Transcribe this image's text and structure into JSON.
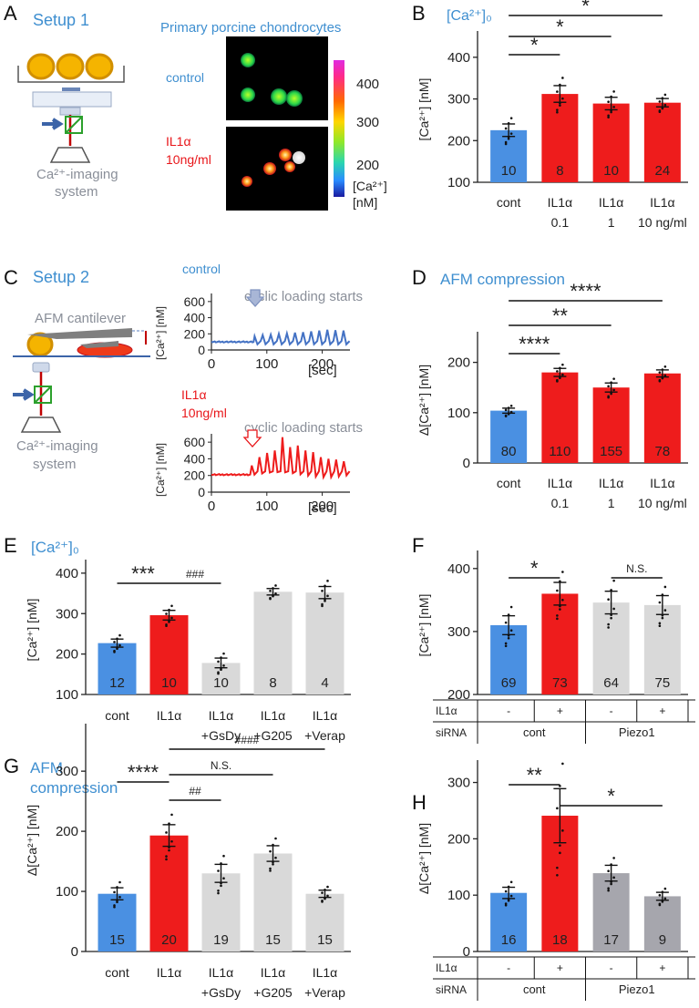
{
  "panels": {
    "A": {
      "letter": "A",
      "setup_title": "Setup 1",
      "micro_title": "Primary porcine chondrocytes",
      "control_label": "control",
      "il1a_label_1": "IL1α",
      "il1a_label_2": "10ng/ml",
      "system_label_1": "Ca²⁺-imaging",
      "system_label_2": "system",
      "colorbar_ticks": [
        "400",
        "300",
        "200"
      ],
      "colorbar_unit_1": "[Ca²⁺]",
      "colorbar_unit_2": "[nM]"
    },
    "C": {
      "letter": "C",
      "setup_title": "Setup 2",
      "cantilever_label": "AFM cantilever",
      "system_label_1": "Ca²⁺-imaging",
      "system_label_2": "system",
      "control_label": "control",
      "il1a_label_1": "IL1α",
      "il1a_label_2": "10ng/ml",
      "cyclic_label": "cyclic loading starts",
      "trace_ylabel": "[Ca²⁺] [nM]",
      "trace_xunit": "[sec]",
      "top_ylabel": "[Ca²⁺] [nM]",
      "bottom_xunit": "[sec]"
    }
  },
  "chart_data": [
    {
      "id": "B",
      "type": "bar",
      "letter": "B",
      "title": "[Ca²⁺]₀",
      "ylabel": "[Ca²⁺] [nM]",
      "ylim": [
        100,
        450
      ],
      "yticks": [
        100,
        200,
        300,
        400
      ],
      "categories": [
        [
          "cont"
        ],
        [
          "IL1α",
          "0.1"
        ],
        [
          "IL1α",
          "1"
        ],
        [
          "IL1α",
          "10 ng/ml"
        ]
      ],
      "values": [
        225,
        312,
        289,
        291
      ],
      "errors": [
        15,
        20,
        15,
        10
      ],
      "n": [
        "10",
        "8",
        "10",
        "24"
      ],
      "colors": [
        "#4a90e2",
        "#ee1c1c",
        "#ee1c1c",
        "#ee1c1c"
      ],
      "significance": [
        {
          "from": 0,
          "to": 1,
          "label": "*",
          "level": 1
        },
        {
          "from": 0,
          "to": 2,
          "label": "*",
          "level": 2
        },
        {
          "from": 0,
          "to": 3,
          "label": "*",
          "level": 3
        }
      ]
    },
    {
      "id": "C1",
      "type": "line",
      "label": "control",
      "ylim": [
        0,
        700
      ],
      "yticks": [
        0,
        200,
        400,
        600
      ],
      "xlim": [
        0,
        250
      ],
      "xticks": [
        0,
        100,
        200
      ],
      "baseline": 100,
      "start": 75,
      "peaks": [
        170,
        185,
        190,
        200,
        205,
        215,
        220,
        230,
        240,
        250,
        245,
        240
      ],
      "color": "#4472c4"
    },
    {
      "id": "C2",
      "type": "line",
      "label": "IL1α 10ng/ml",
      "ylim": [
        0,
        700
      ],
      "yticks": [
        0,
        200,
        400,
        600
      ],
      "xlim": [
        0,
        250
      ],
      "xticks": [
        0,
        100,
        200
      ],
      "baseline": 210,
      "start": 70,
      "peaks": [
        320,
        420,
        470,
        500,
        660,
        540,
        560,
        500,
        480,
        420,
        400,
        390,
        370
      ],
      "color": "#ee1c1c"
    },
    {
      "id": "D",
      "type": "bar",
      "letter": "D",
      "title": "AFM compression",
      "ylabel": "Δ[Ca²⁺] [nM]",
      "ylim": [
        0,
        250
      ],
      "yticks": [
        0,
        100,
        200
      ],
      "categories": [
        [
          "cont"
        ],
        [
          "IL1α",
          "0.1"
        ],
        [
          "IL1α",
          "1"
        ],
        [
          "IL1α",
          "10 ng/ml"
        ]
      ],
      "values": [
        104,
        180,
        150,
        178
      ],
      "errors": [
        5,
        8,
        9,
        7
      ],
      "n": [
        "80",
        "110",
        "155",
        "78"
      ],
      "colors": [
        "#4a90e2",
        "#ee1c1c",
        "#ee1c1c",
        "#ee1c1c"
      ],
      "significance": [
        {
          "from": 0,
          "to": 1,
          "label": "****",
          "level": 1
        },
        {
          "from": 0,
          "to": 2,
          "label": "**",
          "level": 2
        },
        {
          "from": 0,
          "to": 3,
          "label": "****",
          "level": 3
        }
      ]
    },
    {
      "id": "E",
      "type": "bar",
      "letter": "E",
      "title": "[Ca²⁺]₀",
      "ylabel": "[Ca²⁺] [nM]",
      "ylim": [
        100,
        420
      ],
      "yticks": [
        100,
        200,
        300,
        400
      ],
      "categories": [
        [
          "cont"
        ],
        [
          "IL1α"
        ],
        [
          "IL1α",
          "+GsDy"
        ],
        [
          "IL1α",
          "+G205"
        ],
        [
          "IL1α",
          "+Verap"
        ]
      ],
      "values": [
        227,
        296,
        178,
        354,
        352
      ],
      "errors": [
        10,
        12,
        12,
        8,
        15
      ],
      "n": [
        "12",
        "10",
        "10",
        "8",
        "4"
      ],
      "colors": [
        "#4a90e2",
        "#ee1c1c",
        "#d9d9d9",
        "#d9d9d9",
        "#d9d9d9"
      ],
      "significance": [
        {
          "from": 0,
          "to": 1,
          "label": "***",
          "level": 1
        },
        {
          "from": 1,
          "to": 2,
          "label": "###",
          "level": 1
        }
      ]
    },
    {
      "id": "F",
      "type": "bar",
      "letter": "F",
      "ylabel": "[Ca²⁺] [nM]",
      "ylim": [
        200,
        420
      ],
      "yticks": [
        200,
        300,
        400
      ],
      "categories": [
        [
          "-"
        ],
        [
          "+"
        ],
        [
          "-"
        ],
        [
          "+"
        ]
      ],
      "row_labels": [
        "IL1α",
        "siRNA"
      ],
      "groups": [
        "cont",
        "Piezo1"
      ],
      "values": [
        310,
        360,
        346,
        342
      ],
      "errors": [
        15,
        18,
        18,
        15
      ],
      "n": [
        "69",
        "73",
        "64",
        "75"
      ],
      "colors": [
        "#4a90e2",
        "#ee1c1c",
        "#d9d9d9",
        "#d9d9d9"
      ],
      "significance": [
        {
          "from": 0,
          "to": 1,
          "label": "*",
          "level": 1
        },
        {
          "from": 2,
          "to": 3,
          "label": "N.S.",
          "level": 1
        }
      ]
    },
    {
      "id": "G",
      "type": "bar",
      "letter": "G",
      "title_1": "AFM",
      "title_2": "compression",
      "ylabel": "Δ[Ca²⁺] [nM]",
      "ylim": [
        0,
        370
      ],
      "yticks": [
        0,
        100,
        200,
        300
      ],
      "categories": [
        [
          "cont"
        ],
        [
          "IL1α"
        ],
        [
          "IL1α",
          "+GsDy"
        ],
        [
          "IL1α",
          "+G205"
        ],
        [
          "IL1α",
          "+Verap"
        ]
      ],
      "values": [
        96,
        193,
        130,
        163,
        96
      ],
      "errors": [
        10,
        18,
        15,
        13,
        6
      ],
      "n": [
        "15",
        "20",
        "19",
        "15",
        "15"
      ],
      "colors": [
        "#4a90e2",
        "#ee1c1c",
        "#d9d9d9",
        "#d9d9d9",
        "#d9d9d9"
      ],
      "significance": [
        {
          "from": 0,
          "to": 1,
          "label": "****",
          "level": 1
        },
        {
          "from": 1,
          "to": 2,
          "label": "##",
          "level": 1
        },
        {
          "from": 1,
          "to": 3,
          "label": "N.S.",
          "level": 2
        },
        {
          "from": 1,
          "to": 4,
          "label": "####",
          "level": 3
        }
      ]
    },
    {
      "id": "H",
      "type": "bar",
      "letter": "H",
      "ylabel": "Δ[Ca²⁺] [nM]",
      "ylim": [
        0,
        330
      ],
      "yticks": [
        0,
        100,
        200,
        300
      ],
      "categories": [
        [
          "-"
        ],
        [
          "+"
        ],
        [
          "-"
        ],
        [
          "+"
        ]
      ],
      "row_labels": [
        "IL1α",
        "siRNA"
      ],
      "groups": [
        "cont",
        "Piezo1"
      ],
      "values": [
        104,
        241,
        139,
        98
      ],
      "errors": [
        10,
        48,
        14,
        7
      ],
      "n": [
        "16",
        "18",
        "17",
        "9"
      ],
      "colors": [
        "#4a90e2",
        "#ee1c1c",
        "#a6a6ad",
        "#a6a6ad"
      ],
      "significance": [
        {
          "from": 0,
          "to": 1,
          "label": "**",
          "level": 1
        },
        {
          "from": 1,
          "to": 3,
          "label": "*",
          "level": 1
        }
      ]
    }
  ]
}
